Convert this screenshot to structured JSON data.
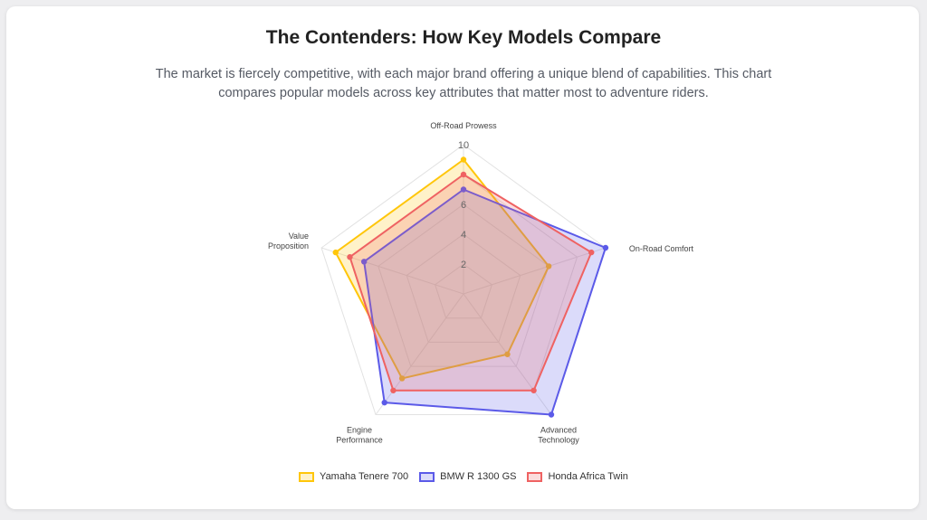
{
  "header": {
    "title": "The Contenders: How Key Models Compare",
    "subtitle": "The market is fiercely competitive, with each major brand offering a unique blend of capabilities. This chart compares popular models across key attributes that matter most to adventure riders."
  },
  "chart_data": {
    "type": "radar",
    "axes": [
      "Off-Road Prowess",
      "On-Road Comfort",
      "Advanced Technology",
      "Engine Performance",
      "Value Proposition"
    ],
    "rlim": [
      0,
      10
    ],
    "ticks": [
      "2",
      "4",
      "6",
      "10"
    ],
    "series": [
      {
        "name": "Yamaha Tenere 700",
        "color": "#ffc60a",
        "fill": "rgba(255,198,10,0.22)",
        "values": [
          9,
          6,
          5,
          7,
          9
        ]
      },
      {
        "name": "BMW R 1300 GS",
        "color": "#5b5ae8",
        "fill": "rgba(91,90,232,0.22)",
        "values": [
          7,
          10,
          10,
          9,
          7
        ]
      },
      {
        "name": "Honda Africa Twin",
        "color": "#ef6262",
        "fill": "rgba(239,98,98,0.22)",
        "values": [
          8,
          9,
          8,
          8,
          8
        ]
      }
    ],
    "legend_position": "bottom"
  }
}
